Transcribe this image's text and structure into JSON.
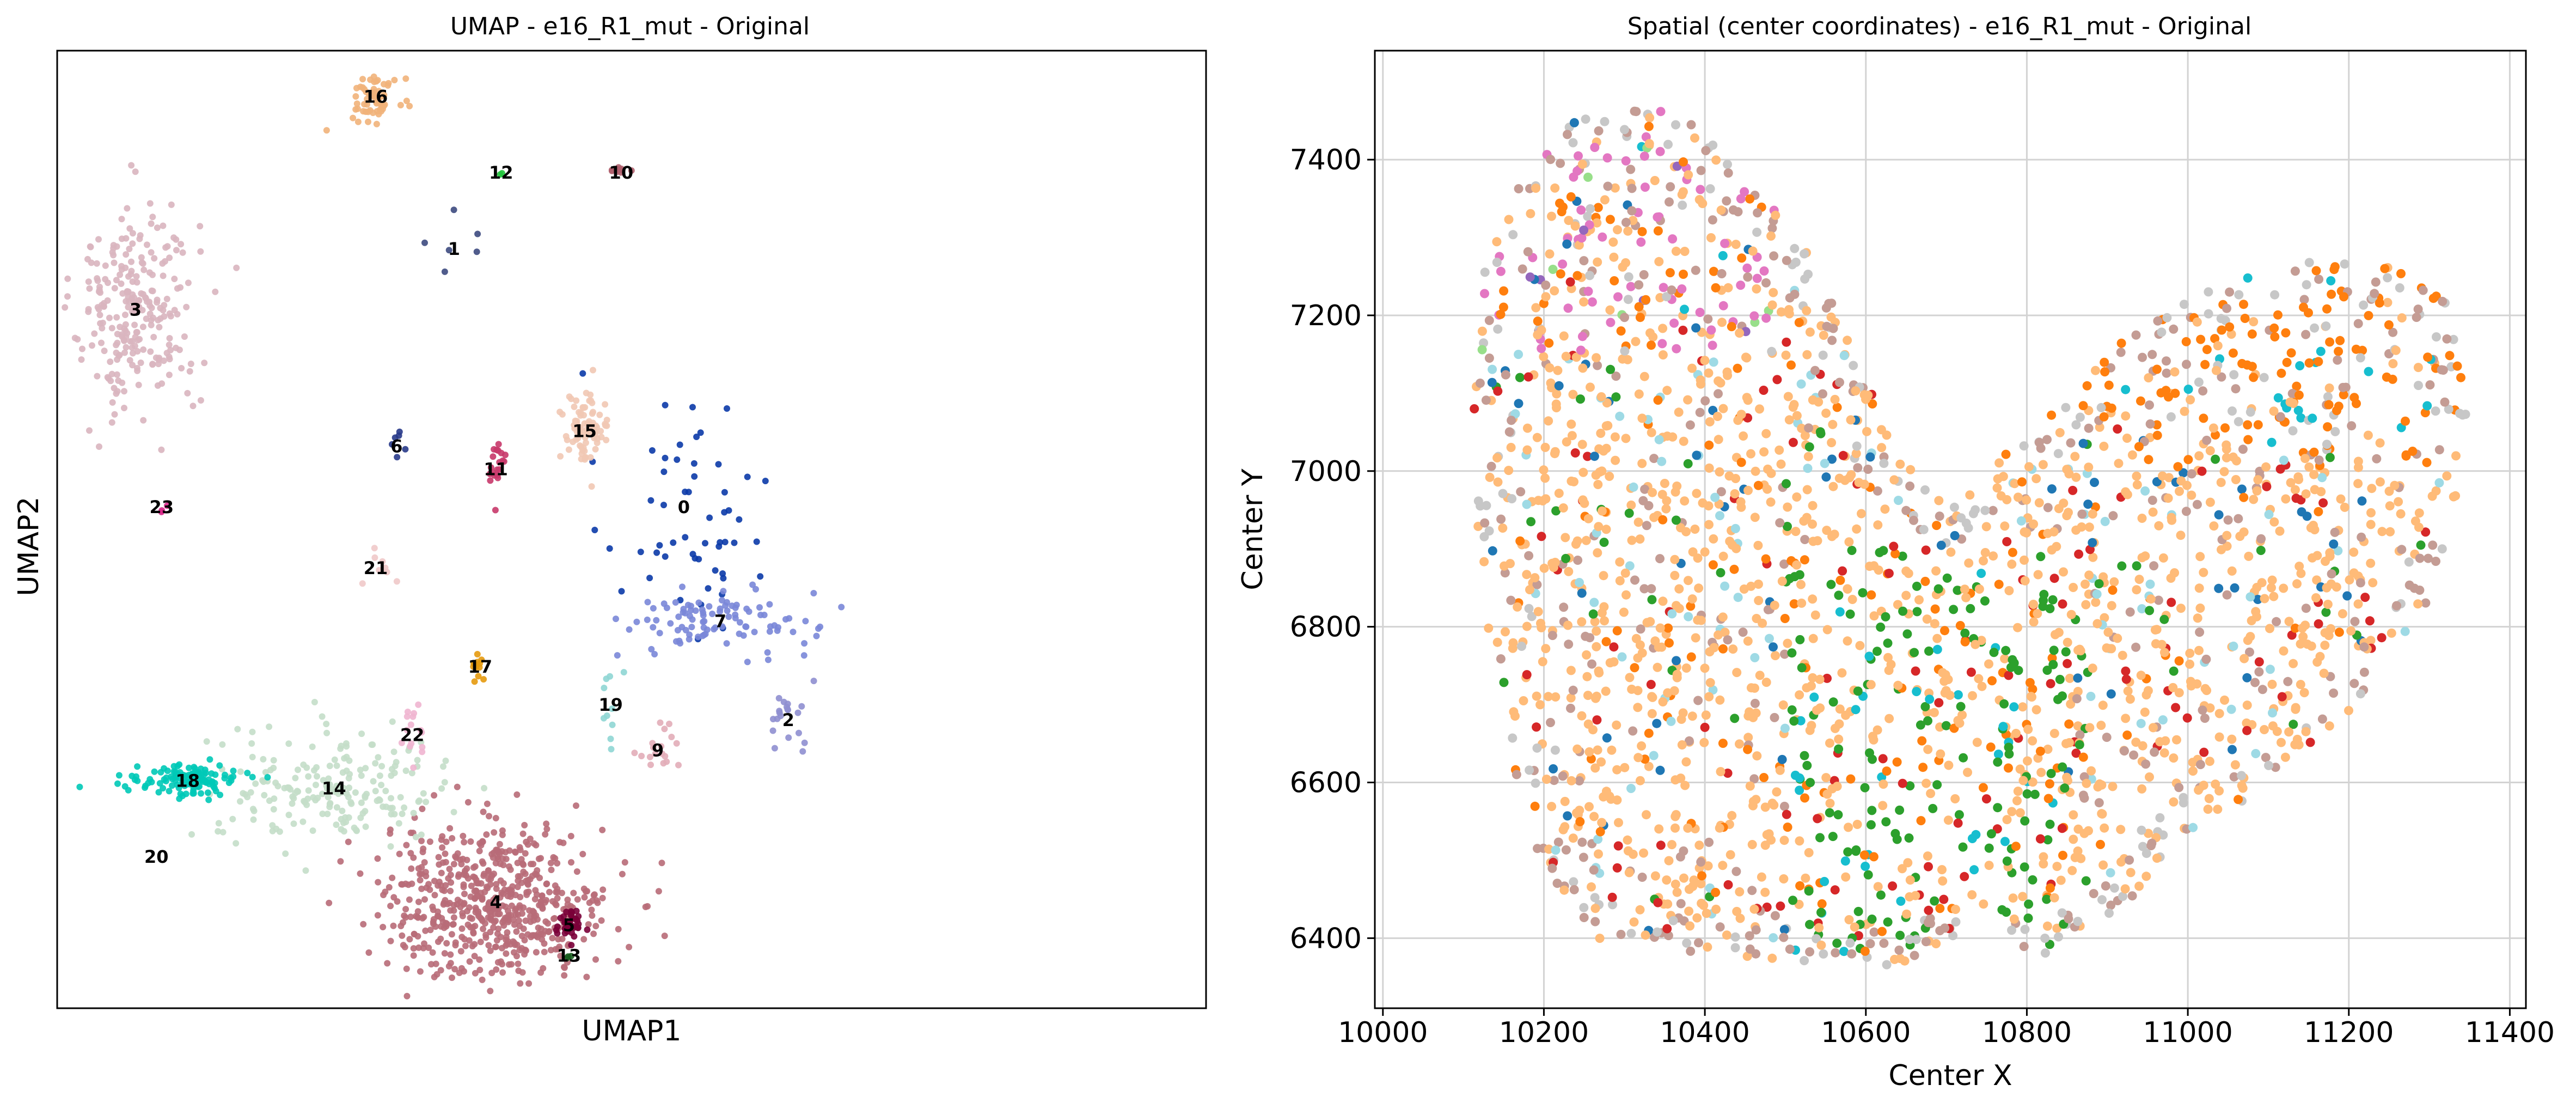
{
  "chart_data": [
    {
      "type": "scatter",
      "title": "UMAP - e16_R1_mut - Original",
      "xlabel": "UMAP1",
      "ylabel": "UMAP2",
      "ticks": "none",
      "grid": false,
      "clusters": [
        {
          "label": "0",
          "x": 1.0,
          "y": 0.0,
          "color": "#0b3aa8",
          "n": 55,
          "sx": 0.4,
          "sy": 0.45
        },
        {
          "label": "1",
          "x": -1.2,
          "y": 1.7,
          "color": "#3d4a80",
          "n": 6,
          "sx": 0.12,
          "sy": 0.1
        },
        {
          "label": "2",
          "x": 2.0,
          "y": -1.4,
          "color": "#8f8fd0",
          "n": 20,
          "sx": 0.12,
          "sy": 0.15
        },
        {
          "label": "3",
          "x": -4.25,
          "y": 1.3,
          "color": "#d9b5bf",
          "n": 260,
          "sx": 0.3,
          "sy": 0.35
        },
        {
          "label": "4",
          "x": -0.8,
          "y": -2.6,
          "color": "#b86b78",
          "n": 600,
          "sx": 0.55,
          "sy": 0.25
        },
        {
          "label": "5",
          "x": -0.1,
          "y": -2.75,
          "color": "#7a0038",
          "n": 40,
          "sx": 0.06,
          "sy": 0.05
        },
        {
          "label": "6",
          "x": -1.75,
          "y": 0.4,
          "color": "#283a8a",
          "n": 6,
          "sx": 0.03,
          "sy": 0.04
        },
        {
          "label": "7",
          "x": 1.35,
          "y": -0.75,
          "color": "#7a87d8",
          "n": 100,
          "sx": 0.45,
          "sy": 0.1
        },
        {
          "label": "9",
          "x": 0.75,
          "y": -1.6,
          "color": "#e2adb8",
          "n": 18,
          "sx": 0.1,
          "sy": 0.08
        },
        {
          "label": "10",
          "x": 0.4,
          "y": 2.2,
          "color": "#b0606e",
          "n": 10,
          "sx": 0.05,
          "sy": 0.03
        },
        {
          "label": "11",
          "x": -0.8,
          "y": 0.25,
          "color": "#c8386a",
          "n": 20,
          "sx": 0.05,
          "sy": 0.12
        },
        {
          "label": "12",
          "x": -0.75,
          "y": 2.2,
          "color": "#22c43c",
          "n": 2,
          "sx": 0.01,
          "sy": 0.01
        },
        {
          "label": "13",
          "x": -0.1,
          "y": -2.95,
          "color": "#1b5e20",
          "n": 3,
          "sx": 0.02,
          "sy": 0.02
        },
        {
          "label": "14",
          "x": -2.35,
          "y": -1.85,
          "color": "#c4dec9",
          "n": 200,
          "sx": 0.55,
          "sy": 0.18
        },
        {
          "label": "15",
          "x": 0.05,
          "y": 0.5,
          "color": "#f1c8b4",
          "n": 80,
          "sx": 0.12,
          "sy": 0.12
        },
        {
          "label": "16",
          "x": -1.95,
          "y": 2.7,
          "color": "#f1b27a",
          "n": 60,
          "sx": 0.12,
          "sy": 0.08
        },
        {
          "label": "17",
          "x": -0.95,
          "y": -1.05,
          "color": "#e69a0e",
          "n": 12,
          "sx": 0.05,
          "sy": 0.04
        },
        {
          "label": "18",
          "x": -3.75,
          "y": -1.8,
          "color": "#00c9b7",
          "n": 120,
          "sx": 0.25,
          "sy": 0.05
        },
        {
          "label": "19",
          "x": 0.3,
          "y": -1.3,
          "color": "#8fd6d4",
          "n": 10,
          "sx": 0.04,
          "sy": 0.15
        },
        {
          "label": "20",
          "x": -4.05,
          "y": -2.3,
          "color": "#d9d9d9",
          "n": 0,
          "sx": 0.01,
          "sy": 0.01
        },
        {
          "label": "21",
          "x": -1.95,
          "y": -0.4,
          "color": "#f0c9c9",
          "n": 8,
          "sx": 0.12,
          "sy": 0.08
        },
        {
          "label": "22",
          "x": -1.6,
          "y": -1.5,
          "color": "#f0b5d0",
          "n": 15,
          "sx": 0.08,
          "sy": 0.12
        },
        {
          "label": "23",
          "x": -4.0,
          "y": 0.0,
          "color": "#d8288a",
          "n": 3,
          "sx": 0.02,
          "sy": 0.02
        }
      ]
    },
    {
      "type": "scatter",
      "title": "Spatial (center coordinates) - e16_R1_mut - Original",
      "xlabel": "Center X",
      "ylabel": "Center Y",
      "xlim": [
        9990,
        11420
      ],
      "ylim": [
        6310,
        7540
      ],
      "xticks": [
        10000,
        10200,
        10400,
        10600,
        10800,
        11000,
        11200,
        11400
      ],
      "yticks": [
        6400,
        6600,
        6800,
        7000,
        7200,
        7400
      ],
      "grid": true,
      "point_colors": [
        "#ffbb78",
        "#ff7f0e",
        "#c49c94",
        "#c7c7c7",
        "#2ca02c",
        "#d62728",
        "#e377c2",
        "#1f77b4",
        "#17becf",
        "#9467bd",
        "#98df8a",
        "#9edae5",
        "#8c564b",
        "#f7b6d2"
      ]
    }
  ]
}
